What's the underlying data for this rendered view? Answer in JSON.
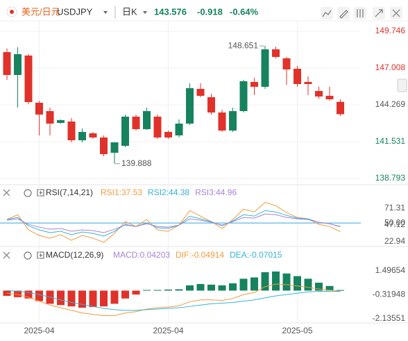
{
  "header": {
    "pair_name": "美元/日元",
    "symbol": "USDJPY",
    "period": "日K",
    "price": 143.576,
    "change": -0.918,
    "change_percent": "-0.64%"
  },
  "chart_data": [
    {
      "type": "candlestick",
      "categories": [
        null,
        null,
        null,
        "2025-04",
        null,
        null,
        null,
        null,
        null,
        null,
        null,
        null,
        null,
        null,
        null,
        "2025-04",
        null,
        null,
        null,
        null,
        null,
        null,
        null,
        null,
        null,
        null,
        null,
        "2025-05",
        null,
        null,
        null,
        null
      ],
      "open": [
        148.196,
        146.492,
        147.938,
        144.426,
        143.806,
        142.928,
        143.031,
        141.636,
        142.153,
        141.843,
        140.707,
        141.223,
        143.393,
        142.463,
        143.393,
        142.256,
        141.998,
        142.876,
        145.459,
        144.839,
        143.703,
        142.36,
        143.806,
        145.975,
        145.614,
        148.4,
        147.732,
        146.957,
        145.975,
        145.304,
        144.942,
        144.494
      ],
      "high": [
        148.455,
        148.558,
        148.041,
        144.581,
        144.064,
        143.186,
        143.289,
        142.515,
        142.256,
        141.998,
        141.482,
        143.548,
        143.548,
        144.064,
        143.548,
        142.36,
        143.186,
        145.872,
        145.872,
        145.097,
        143.909,
        144.064,
        146.13,
        146.285,
        148.651,
        148.6,
        147.835,
        147.163,
        146.392,
        145.614,
        145.614,
        144.684
      ],
      "low": [
        146.13,
        144.064,
        144.322,
        141.998,
        141.998,
        142.876,
        141.482,
        141.482,
        141.74,
        140.448,
        139.888,
        141.12,
        142.36,
        142.411,
        141.74,
        141.74,
        141.843,
        142.773,
        144.839,
        143.548,
        142.256,
        142.256,
        143.703,
        144.994,
        145.459,
        147.732,
        145.769,
        145.614,
        144.994,
        144.736,
        144.581,
        143.444
      ],
      "close": [
        146.492,
        148.041,
        144.477,
        143.548,
        142.876,
        143.134,
        141.636,
        142.256,
        141.843,
        140.603,
        141.482,
        143.393,
        142.463,
        143.806,
        141.843,
        141.843,
        142.876,
        145.51,
        144.942,
        143.703,
        142.36,
        143.806,
        146.027,
        145.614,
        148.4,
        147.835,
        146.905,
        145.82,
        145.82,
        144.891,
        144.684,
        143.576
      ],
      "up_color": "#16835e",
      "down_color": "#e0322a",
      "ylim": [
        138.38,
        150.52
      ],
      "yticks": [
        149.746,
        147.008,
        144.269,
        141.531,
        138.793
      ],
      "grid": true
    },
    {
      "type": "line",
      "title": "RSI(7,14,21)",
      "series": [
        {
          "name": "RSI1:37.53",
          "color": "#f29a3c",
          "values": [
            55,
            62,
            40,
            32,
            28,
            33,
            25,
            32,
            28,
            22,
            35,
            52,
            45,
            55,
            40,
            38,
            47,
            68,
            60,
            52,
            42,
            55,
            70,
            66,
            80,
            75,
            65,
            58,
            56,
            48,
            45,
            37.53
          ]
        },
        {
          "name": "RSI2:44.38",
          "color": "#35b3d6",
          "values": [
            55,
            58,
            46,
            40,
            36,
            38,
            33,
            37,
            35,
            31,
            38,
            48,
            45,
            50,
            43,
            42,
            47,
            60,
            56,
            52,
            46,
            53,
            62,
            60,
            68,
            66,
            61,
            57,
            56,
            51,
            49,
            44.38
          ]
        },
        {
          "name": "RSI3:44.96",
          "color": "#a783d6",
          "values": [
            54,
            56,
            48,
            44,
            41,
            42,
            38,
            40,
            39,
            36,
            41,
            47,
            45,
            49,
            45,
            44,
            47,
            56,
            54,
            51,
            47,
            52,
            58,
            57,
            63,
            62,
            58,
            56,
            55,
            51,
            49,
            44.96
          ]
        }
      ],
      "ylim": [
        18.9,
        81.3
      ],
      "yticks": [
        71.31,
        {
          "value": 50,
          "label": "50.00"
        },
        47.12,
        22.94
      ],
      "reference_line": 50,
      "reference_color": "#5bb8e0",
      "grid": false
    },
    {
      "type": "macd",
      "title": "MACD(12,26,9)",
      "up_color": "#16835e",
      "down_color": "#e0322a",
      "series": [
        {
          "name": "MACD:0.04203",
          "color": "#a783d6",
          "values": [
            -0.4,
            -0.5,
            -0.6,
            -0.8,
            -1.0,
            -1.1,
            -1.2,
            -1.3,
            -1.25,
            -1.2,
            -1.0,
            -0.6,
            -0.3,
            0.05,
            0.05,
            0.08,
            0.1,
            0.4,
            0.5,
            0.45,
            0.4,
            0.55,
            0.9,
            1.0,
            1.4,
            1.45,
            1.3,
            1.1,
            0.9,
            0.6,
            0.35,
            0.04203
          ]
        },
        {
          "name": "DIF:-0.04914",
          "color": "#f29a3c",
          "values": [
            -0.2,
            -0.3,
            -0.5,
            -0.8,
            -1.1,
            -1.3,
            -1.5,
            -1.7,
            -1.8,
            -1.9,
            -1.9,
            -1.7,
            -1.6,
            -1.4,
            -1.3,
            -1.25,
            -1.15,
            -0.85,
            -0.7,
            -0.7,
            -0.75,
            -0.6,
            -0.3,
            -0.15,
            0.3,
            0.5,
            0.45,
            0.35,
            0.25,
            0.12,
            0.03,
            -0.04914
          ]
        },
        {
          "name": "DEA:-0.07015",
          "color": "#35b3d6",
          "values": [
            0,
            -0.05,
            -0.15,
            -0.3,
            -0.5,
            -0.7,
            -0.9,
            -1.05,
            -1.2,
            -1.35,
            -1.45,
            -1.5,
            -1.5,
            -1.45,
            -1.4,
            -1.35,
            -1.3,
            -1.2,
            -1.1,
            -1.0,
            -0.95,
            -0.9,
            -0.8,
            -0.7,
            -0.55,
            -0.4,
            -0.3,
            -0.2,
            -0.1,
            -0.05,
            -0.06,
            -0.07015
          ]
        }
      ],
      "ylim": [
        -2.35,
        2.29
      ],
      "yticks": [
        1.49654,
        -0.31948,
        -2.13551
      ],
      "grid": false
    }
  ]
}
